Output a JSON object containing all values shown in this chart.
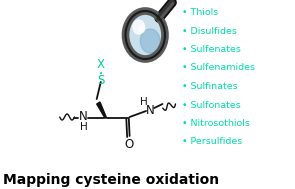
{
  "title": "Mapping cysteine oxidation",
  "title_fontsize": 10,
  "title_color": "#000000",
  "title_weight": "bold",
  "bullet_items": [
    "Thiols",
    "Disulfides",
    "Sulfenates",
    "Sulfenamides",
    "Sulfinates",
    "Sulfonates",
    "Nitrosothiols",
    "Persulfides"
  ],
  "bullet_color": "#00DDA8",
  "bullet_fontsize": 6.8,
  "bg_color": "#ffffff",
  "teal": "#00CC99",
  "black": "#111111"
}
